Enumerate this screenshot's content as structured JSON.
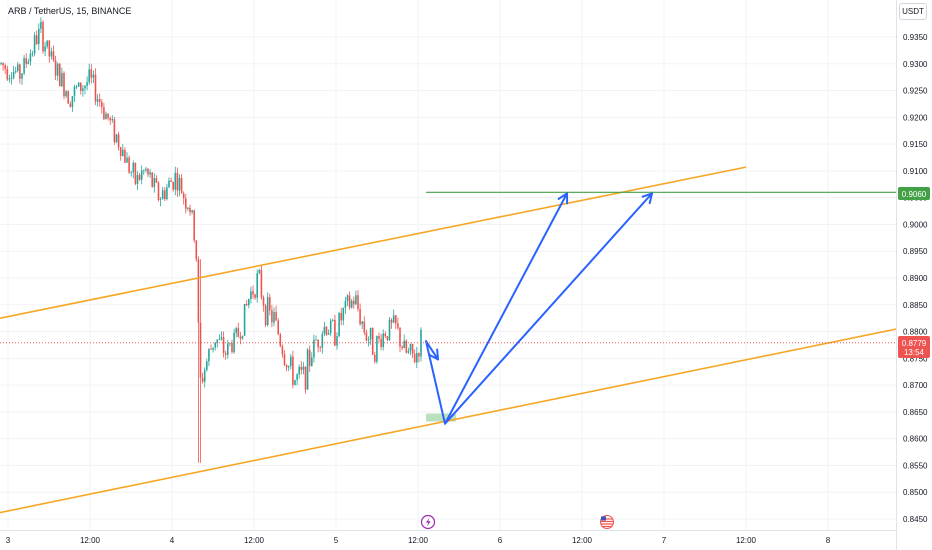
{
  "header": {
    "symbol": "ARB / TetherUS, 15, BINANCE",
    "currency_button": "USDT"
  },
  "price_axis": {
    "ticks": [
      "0.9350",
      "0.9300",
      "0.9250",
      "0.9200",
      "0.9150",
      "0.9100",
      "0.9050",
      "0.9000",
      "0.8950",
      "0.8900",
      "0.8850",
      "0.8800",
      "0.8750",
      "0.8700",
      "0.8650",
      "0.8600",
      "0.8550",
      "0.8500",
      "0.8450"
    ],
    "target_label": "0.9060",
    "current_price": "0.8779",
    "countdown": "13:54"
  },
  "time_axis": {
    "ticks": [
      "3",
      "12:00",
      "4",
      "12:00",
      "5",
      "12:00",
      "6",
      "12:00",
      "7",
      "12:00",
      "8"
    ]
  },
  "colors": {
    "up": "#26a69a",
    "down": "#ef5350",
    "channel": "#f5a623",
    "target": "#43a047",
    "arrows": "#2962ff",
    "zone": "#a5d6a7"
  },
  "events": {
    "lightning_icon": "bolt-icon",
    "flag_icon": "us-flag-icon"
  },
  "chart_data": {
    "type": "candlestick",
    "symbol": "ARB / TetherUS",
    "interval": "15",
    "exchange": "BINANCE",
    "current_price": 0.8779,
    "target_level": 0.906,
    "ylim": [
      0.8435,
      0.9395
    ],
    "x_ticks": [
      "3",
      "12:00",
      "4",
      "12:00",
      "5",
      "12:00",
      "6",
      "12:00",
      "7",
      "12:00",
      "8"
    ],
    "price_path": [
      [
        0,
        0.93
      ],
      [
        20,
        0.928
      ],
      [
        40,
        0.936
      ],
      [
        55,
        0.929
      ],
      [
        70,
        0.924
      ],
      [
        90,
        0.927
      ],
      [
        105,
        0.921
      ],
      [
        120,
        0.915
      ],
      [
        135,
        0.908
      ],
      [
        145,
        0.91
      ],
      [
        160,
        0.905
      ],
      [
        175,
        0.909
      ],
      [
        190,
        0.903
      ],
      [
        196,
        0.896
      ],
      [
        200,
        0.87
      ],
      [
        206,
        0.874
      ],
      [
        215,
        0.879
      ],
      [
        225,
        0.876
      ],
      [
        240,
        0.88
      ],
      [
        250,
        0.887
      ],
      [
        258,
        0.89
      ],
      [
        266,
        0.884
      ],
      [
        275,
        0.882
      ],
      [
        285,
        0.875
      ],
      [
        295,
        0.871
      ],
      [
        305,
        0.872
      ],
      [
        315,
        0.878
      ],
      [
        325,
        0.881
      ],
      [
        335,
        0.88
      ],
      [
        345,
        0.884
      ],
      [
        355,
        0.886
      ],
      [
        365,
        0.88
      ],
      [
        375,
        0.877
      ],
      [
        385,
        0.88
      ],
      [
        395,
        0.881
      ],
      [
        405,
        0.876
      ],
      [
        415,
        0.875
      ],
      [
        422,
        0.879
      ]
    ],
    "channel": {
      "upper": [
        [
          0,
          0.8825
        ],
        [
          746,
          0.9107
        ]
      ],
      "lower": [
        [
          0,
          0.8462
        ],
        [
          897,
          0.8805
        ]
      ]
    },
    "projection_arrows": [
      [
        [
          426,
          0.8782
        ],
        [
          445,
          0.8628
        ],
        [
          567,
          0.9058
        ]
      ],
      [
        [
          426,
          0.8782
        ],
        [
          438,
          0.8748
        ]
      ],
      [
        [
          445,
          0.8628
        ],
        [
          652,
          0.9058
        ]
      ]
    ],
    "support_zone": {
      "from": 426,
      "to": 456,
      "low": 0.8632,
      "high": 0.8647
    }
  }
}
